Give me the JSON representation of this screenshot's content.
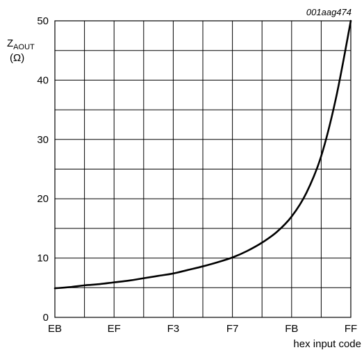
{
  "figure_id": "001aag474",
  "chart_data": {
    "type": "line",
    "ylabel_main": "Z",
    "ylabel_sub": "AOUT",
    "ylabel_unit": "(Ω)",
    "xlabel": "hex input code",
    "x_categories": [
      "EB",
      "EF",
      "F3",
      "F7",
      "FB",
      "FF"
    ],
    "x_range": [
      235,
      255
    ],
    "y_ticks": [
      0,
      10,
      20,
      30,
      40,
      50
    ],
    "ylim": [
      0,
      50
    ],
    "grid": true,
    "series": [
      {
        "x": [
          235,
          236,
          237,
          238,
          239,
          240,
          241,
          242,
          243,
          244,
          245,
          246,
          247,
          248,
          249,
          250,
          251,
          252,
          253,
          254,
          255
        ],
        "values": [
          4.9,
          5.1,
          5.4,
          5.6,
          5.9,
          6.2,
          6.6,
          7.0,
          7.4,
          8.0,
          8.6,
          9.3,
          10.1,
          11.2,
          12.6,
          14.4,
          17.0,
          21.0,
          27.2,
          37.0,
          50.0
        ]
      }
    ]
  }
}
